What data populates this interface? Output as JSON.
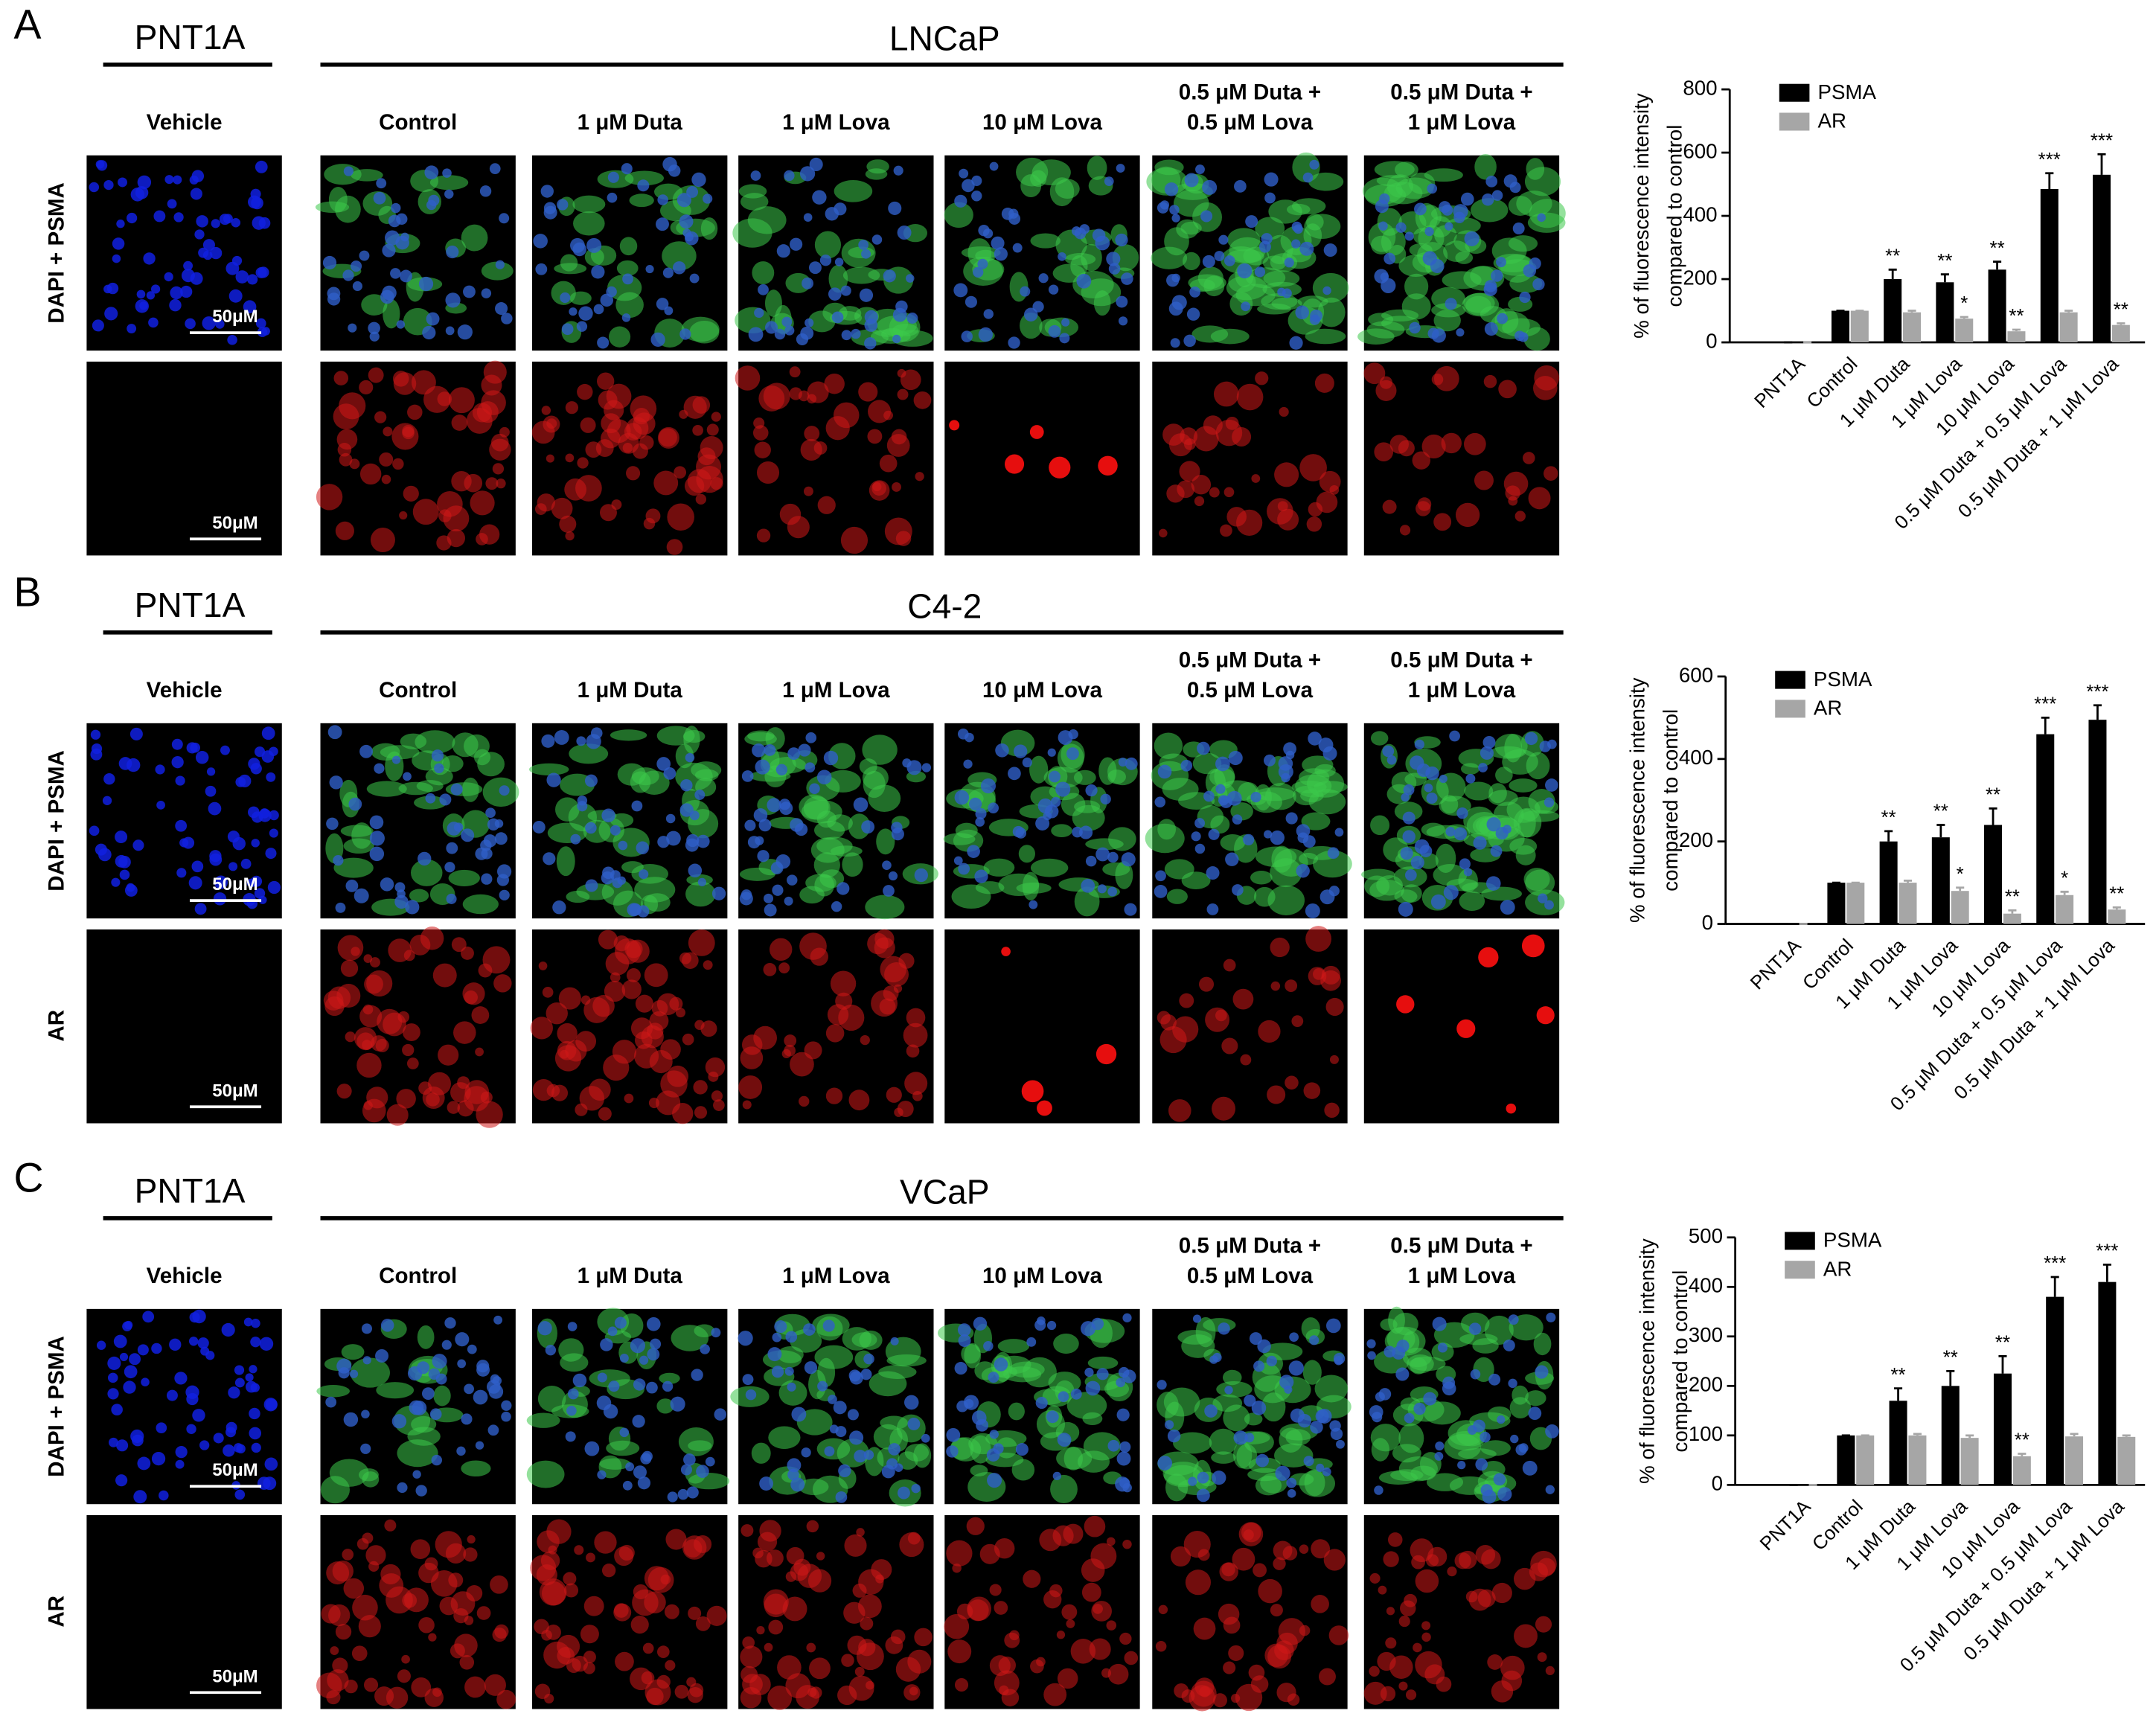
{
  "panels": [
    {
      "letter": "A",
      "reference": "PNT1A",
      "cell_line": "LNCaP",
      "vehicle": "Vehicle",
      "columns": [
        "Control",
        "1 μM Duta",
        "1 μM Lova",
        "10 μM Lova",
        [
          "0.5 μM Duta +",
          "0.5 μM Lova"
        ],
        [
          "0.5 μM Duta +",
          "1 μM Lova"
        ]
      ],
      "rows": [
        "DAPI + PSMA"
      ],
      "scale_bar": "50μM"
    },
    {
      "letter": "B",
      "reference": "PNT1A",
      "cell_line": "C4-2",
      "vehicle": "Vehicle",
      "columns": [
        "Control",
        "1 μM Duta",
        "1 μM Lova",
        "10 μM Lova",
        [
          "0.5 μM Duta +",
          "0.5 μM Lova"
        ],
        [
          "0.5 μM Duta +",
          "1 μM Lova"
        ]
      ],
      "rows": [
        "DAPI + PSMA",
        "AR"
      ],
      "scale_bar": "50μM"
    },
    {
      "letter": "C",
      "reference": "PNT1A",
      "cell_line": "VCaP",
      "vehicle": "Vehicle",
      "columns": [
        "Control",
        "1 μM Duta",
        "1 μM Lova",
        "10 μM Lova",
        [
          "0.5 μM Duta +",
          "0.5 μM Lova"
        ],
        [
          "0.5 μM Duta +",
          "1 μM Lova"
        ]
      ],
      "rows": [
        "DAPI + PSMA",
        "AR"
      ],
      "scale_bar": "50μM"
    }
  ],
  "chart_data": [
    {
      "type": "bar",
      "ylabel": [
        "% of fluorescence intensity",
        "compared to control"
      ],
      "categories": [
        "PNT1A",
        "Control",
        "1 μM Duta",
        "1 μM Lova",
        "10 μM Lova",
        "0.5 μM Duta + 0.5 μM Lova",
        "0.5 μM Duta + 1 μM Lova"
      ],
      "series": [
        {
          "name": "PSMA",
          "color": "#000000",
          "values": [
            0,
            100,
            200,
            190,
            230,
            485,
            530
          ],
          "errors": [
            0,
            0,
            30,
            25,
            25,
            50,
            65
          ],
          "significance": [
            null,
            null,
            "**",
            "**",
            "**",
            "***",
            "***"
          ]
        },
        {
          "name": "AR",
          "color": "#a6a6a6",
          "values": [
            0,
            100,
            95,
            75,
            35,
            95,
            55
          ],
          "errors": [
            0,
            0,
            5,
            5,
            5,
            5,
            5
          ],
          "significance": [
            null,
            null,
            null,
            "*",
            "**",
            null,
            "**"
          ]
        }
      ],
      "ylim": [
        0,
        800
      ],
      "yticks": [
        0,
        200,
        400,
        600,
        800
      ],
      "legend": "upper left"
    },
    {
      "type": "bar",
      "ylabel": [
        "% of fluorescence intensity",
        "compared to control"
      ],
      "categories": [
        "PNT1A",
        "Control",
        "1 μM Duta",
        "1 μM Lova",
        "10 μM Lova",
        "0.5 μM Duta + 0.5 μM Lova",
        "0.5 μM Duta + 1 μM Lova"
      ],
      "series": [
        {
          "name": "PSMA",
          "color": "#000000",
          "values": [
            0,
            100,
            200,
            210,
            240,
            460,
            495
          ],
          "errors": [
            0,
            0,
            25,
            30,
            40,
            40,
            35
          ],
          "significance": [
            null,
            null,
            "**",
            "**",
            "**",
            "***",
            "***"
          ]
        },
        {
          "name": "AR",
          "color": "#a6a6a6",
          "values": [
            0,
            100,
            100,
            80,
            25,
            70,
            35
          ],
          "errors": [
            0,
            0,
            5,
            8,
            8,
            8,
            5
          ],
          "significance": [
            null,
            null,
            null,
            "*",
            "**",
            "*",
            "**"
          ]
        }
      ],
      "ylim": [
        0,
        600
      ],
      "yticks": [
        0,
        200,
        400,
        600
      ],
      "legend": "upper left"
    },
    {
      "type": "bar",
      "ylabel": [
        "% of fluorescence intensity",
        "compared to control"
      ],
      "categories": [
        "PNT1A",
        "Control",
        "1 μM Duta",
        "1 μM Lova",
        "10 μM Lova",
        "0.5 μM Duta + 0.5 μM Lova",
        "0.5 μM Duta + 1 μM Lova"
      ],
      "series": [
        {
          "name": "PSMA",
          "color": "#000000",
          "values": [
            0,
            100,
            170,
            200,
            225,
            380,
            410
          ],
          "errors": [
            0,
            0,
            25,
            30,
            35,
            40,
            35
          ],
          "significance": [
            null,
            null,
            "**",
            "**",
            "**",
            "***",
            "***"
          ]
        },
        {
          "name": "AR",
          "color": "#a6a6a6",
          "values": [
            0,
            100,
            100,
            95,
            58,
            98,
            97
          ],
          "errors": [
            0,
            0,
            3,
            5,
            5,
            5,
            3
          ],
          "significance": [
            null,
            null,
            null,
            null,
            "**",
            null,
            null
          ]
        }
      ],
      "ylim": [
        0,
        500
      ],
      "yticks": [
        0,
        100,
        200,
        300,
        400,
        500
      ],
      "legend": "upper left"
    }
  ]
}
